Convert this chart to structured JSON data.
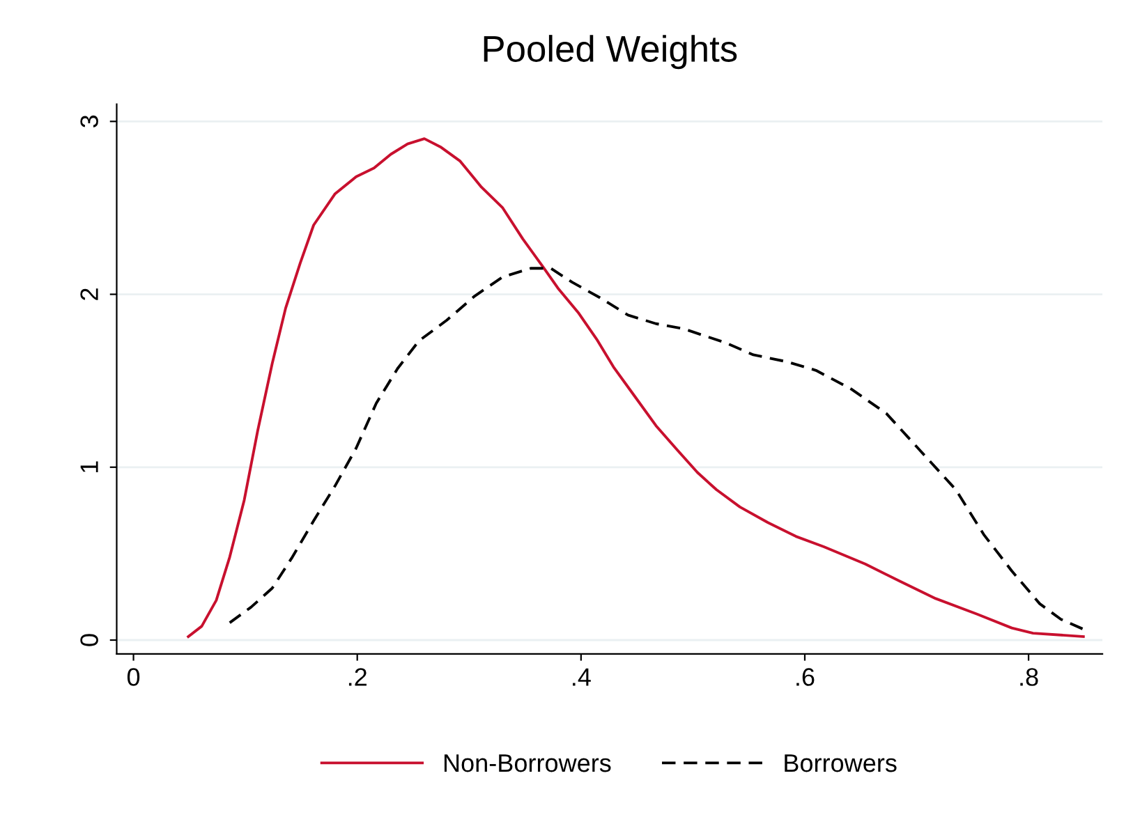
{
  "chart_data": {
    "type": "line",
    "title": "Pooled Weights",
    "xlim": [
      -0.015,
      0.866
    ],
    "ylim": [
      -0.08,
      3.1
    ],
    "xticks": [
      0,
      {
        "value": 0.2,
        "label": ".2"
      },
      {
        "value": 0.4,
        "label": ".4"
      },
      {
        "value": 0.6,
        "label": ".6"
      },
      {
        "value": 0.8,
        "label": ".8"
      }
    ],
    "yticks": [
      0,
      1,
      2,
      3
    ],
    "grid": "y",
    "legend": "bottom",
    "series": [
      {
        "name": "Non-Borrowers",
        "color": "#c8102e",
        "line_style": "solid",
        "x": [
          0.049,
          0.061,
          0.074,
          0.086,
          0.099,
          0.111,
          0.124,
          0.136,
          0.149,
          0.161,
          0.18,
          0.199,
          0.215,
          0.23,
          0.245,
          0.26,
          0.275,
          0.292,
          0.311,
          0.33,
          0.348,
          0.367,
          0.38,
          0.398,
          0.414,
          0.429,
          0.448,
          0.467,
          0.486,
          0.504,
          0.521,
          0.542,
          0.567,
          0.592,
          0.617,
          0.654,
          0.685,
          0.717,
          0.754,
          0.785,
          0.804,
          0.849
        ],
        "values": [
          0.02,
          0.08,
          0.23,
          0.48,
          0.81,
          1.21,
          1.6,
          1.92,
          2.18,
          2.4,
          2.58,
          2.68,
          2.73,
          2.81,
          2.87,
          2.9,
          2.85,
          2.77,
          2.62,
          2.5,
          2.32,
          2.15,
          2.03,
          1.89,
          1.74,
          1.58,
          1.41,
          1.24,
          1.1,
          0.97,
          0.87,
          0.77,
          0.68,
          0.6,
          0.54,
          0.44,
          0.34,
          0.24,
          0.15,
          0.07,
          0.04,
          0.02
        ]
      },
      {
        "name": "Borrowers",
        "color": "#000000",
        "line_style": "dashed",
        "x": [
          0.086,
          0.105,
          0.124,
          0.142,
          0.161,
          0.18,
          0.199,
          0.217,
          0.236,
          0.255,
          0.28,
          0.305,
          0.33,
          0.355,
          0.373,
          0.392,
          0.417,
          0.442,
          0.467,
          0.492,
          0.529,
          0.554,
          0.584,
          0.61,
          0.642,
          0.673,
          0.704,
          0.735,
          0.76,
          0.785,
          0.81,
          0.829,
          0.85
        ],
        "values": [
          0.1,
          0.19,
          0.3,
          0.48,
          0.69,
          0.89,
          1.11,
          1.37,
          1.57,
          1.73,
          1.85,
          1.99,
          2.1,
          2.15,
          2.15,
          2.07,
          1.98,
          1.88,
          1.83,
          1.8,
          1.72,
          1.65,
          1.61,
          1.56,
          1.45,
          1.31,
          1.09,
          0.87,
          0.61,
          0.4,
          0.21,
          0.12,
          0.06
        ]
      }
    ]
  }
}
